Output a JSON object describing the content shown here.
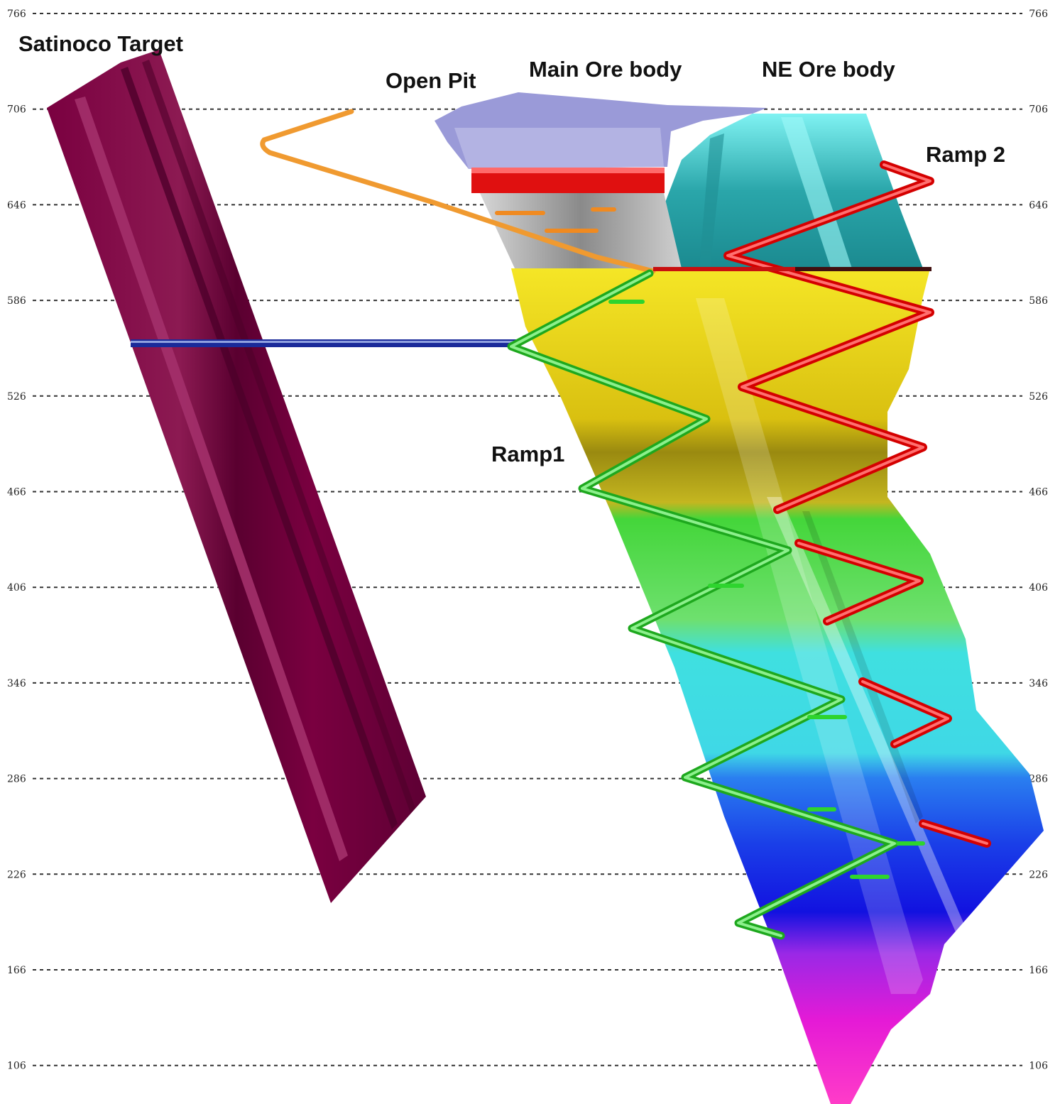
{
  "labels": {
    "satinoco_target": "Satinoco Target",
    "open_pit": "Open Pit",
    "main_ore_body": "Main Ore body",
    "ne_ore_body": "NE Ore body",
    "ramp_1": "Ramp1",
    "ramp_2": "Ramp 2"
  },
  "elevation_levels": [
    "766",
    "706",
    "646",
    "586",
    "526",
    "466",
    "406",
    "346",
    "286",
    "226",
    "166",
    "106"
  ],
  "colors": {
    "satinoco": "#6e0038",
    "satinoco_light": "#a32a6a",
    "open_pit": "#8f8fd0",
    "ne_body": "#5fd8da",
    "ramp1": "#33c233",
    "ramp2": "#e01212",
    "orange_drive": "#f09a30",
    "blue_drive": "#1a2a9a",
    "grid": "#333333"
  },
  "ore_bands": [
    "#d8c0a8",
    "#ff1a1a",
    "#b9b9b9",
    "#f2e02a",
    "#b39a00",
    "#3ad63a",
    "#33d8d8",
    "#1a6ef0",
    "#1212e6",
    "#9a22e6",
    "#e01ad8",
    "#ff44d0"
  ]
}
